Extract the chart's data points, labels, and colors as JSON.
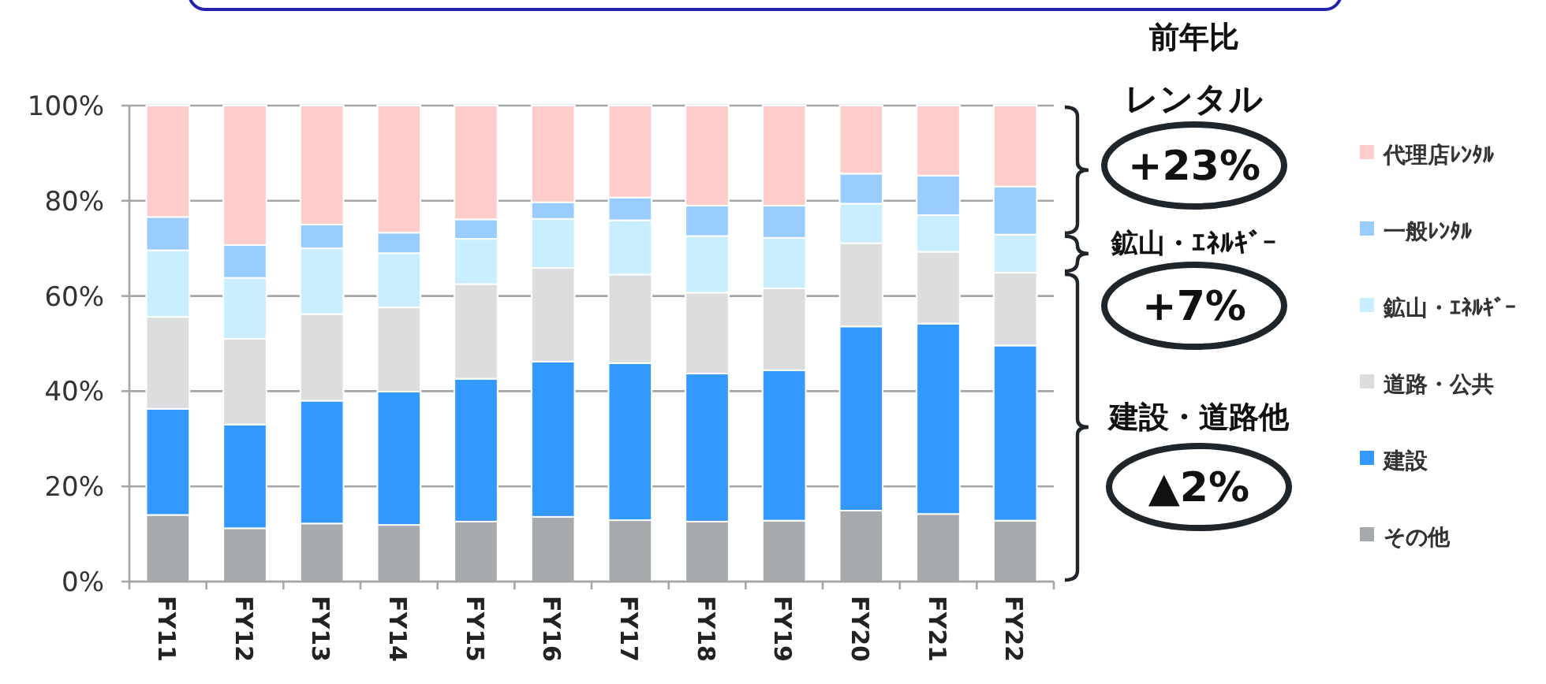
{
  "chart_data": {
    "type": "bar",
    "stacked": true,
    "categories": [
      "FY11",
      "FY12",
      "FY13",
      "FY14",
      "FY15",
      "FY16",
      "FY17",
      "FY18",
      "FY19",
      "FY20",
      "FY21",
      "FY22"
    ],
    "series": [
      {
        "name": "その他",
        "color": "#a6aaad",
        "values": [
          14.0,
          11.2,
          12.2,
          11.9,
          12.6,
          13.6,
          12.9,
          12.6,
          12.8,
          14.9,
          14.2,
          12.8
        ]
      },
      {
        "name": "建設",
        "color": "#3399ff",
        "values": [
          22.3,
          21.8,
          25.8,
          28.0,
          30.0,
          32.6,
          33.0,
          31.1,
          31.6,
          38.7,
          40.0,
          36.8
        ]
      },
      {
        "name": "道路・公共",
        "color": "#dcdddf",
        "values": [
          19.3,
          18.0,
          18.2,
          17.7,
          19.9,
          19.7,
          18.6,
          17.0,
          17.2,
          17.5,
          15.1,
          15.3
        ]
      },
      {
        "name": "鉱山・ｴﾈﾙｷﾞｰ",
        "color": "#c8eeff",
        "values": [
          14.0,
          12.8,
          13.8,
          11.4,
          9.5,
          10.3,
          11.4,
          11.9,
          10.6,
          8.3,
          7.7,
          8.0
        ]
      },
      {
        "name": "一般ﾚﾝﾀﾙ",
        "color": "#99ccff",
        "values": [
          7.0,
          6.9,
          5.0,
          4.3,
          4.1,
          3.5,
          4.8,
          6.4,
          6.8,
          6.3,
          8.3,
          10.1
        ]
      },
      {
        "name": "代理店ﾚﾝﾀﾙ",
        "color": "#ffcccc",
        "values": [
          23.4,
          29.3,
          25.0,
          26.7,
          23.9,
          20.3,
          19.3,
          21.0,
          21.0,
          14.3,
          14.7,
          17.0
        ]
      }
    ],
    "ylim": [
      0,
      100
    ],
    "yticks": [
      {
        "value": 0,
        "label": "0%"
      },
      {
        "value": 20,
        "label": "20%"
      },
      {
        "value": 40,
        "label": "40%"
      },
      {
        "value": 60,
        "label": "60%"
      },
      {
        "value": 80,
        "label": "80%"
      },
      {
        "value": 100,
        "label": "100%"
      }
    ],
    "grid": "y",
    "legend": "right",
    "annotations": [
      "前年比",
      "レンタル",
      "+23%",
      "鉱山・ｴﾈﾙｷﾞｰ",
      "+7%",
      "建設・道路他",
      "▲2%"
    ]
  }
}
